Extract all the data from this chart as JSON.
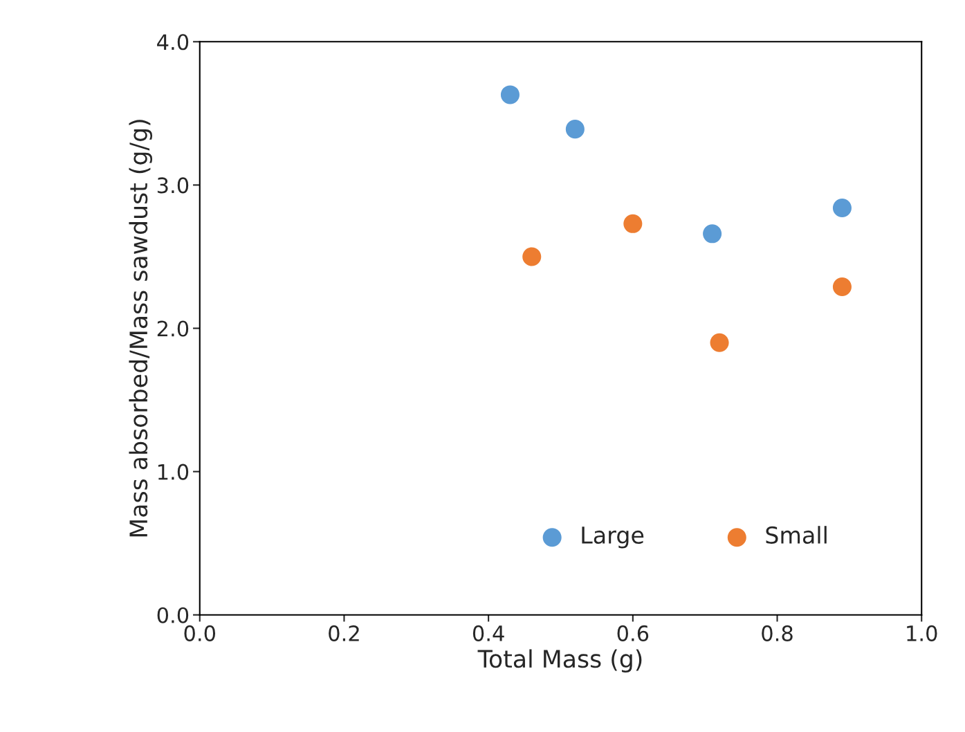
{
  "chart_data": {
    "type": "scatter",
    "xlabel": "Total Mass (g)",
    "ylabel": "Mass absorbed/Mass sawdust (g/g)",
    "series": [
      {
        "name": "Large",
        "color": "#5b9bd5",
        "x": [
          0.43,
          0.52,
          0.71,
          0.89
        ],
        "values": [
          3.63,
          3.39,
          2.66,
          2.84
        ]
      },
      {
        "name": "Small",
        "color": "#ed7d31",
        "x": [
          0.46,
          0.6,
          0.72,
          0.89
        ],
        "values": [
          2.5,
          2.73,
          1.9,
          2.29
        ]
      }
    ],
    "xlim": [
      0,
      1.0
    ],
    "ylim": [
      0,
      4.0
    ],
    "xticks": [
      {
        "value": 0,
        "label": "0.0"
      },
      0.2,
      0.4,
      0.6,
      0.8,
      {
        "value": 1.0,
        "label": "1.0"
      }
    ],
    "yticks": [
      {
        "value": 0,
        "label": "0.0"
      },
      {
        "value": 1.0,
        "label": "1.0"
      },
      {
        "value": 2.0,
        "label": "2.0"
      },
      {
        "value": 3.0,
        "label": "3.0"
      },
      {
        "value": 4.0,
        "label": "4.0"
      }
    ],
    "grid": false,
    "legend": "bottom right",
    "marker": "circle"
  }
}
